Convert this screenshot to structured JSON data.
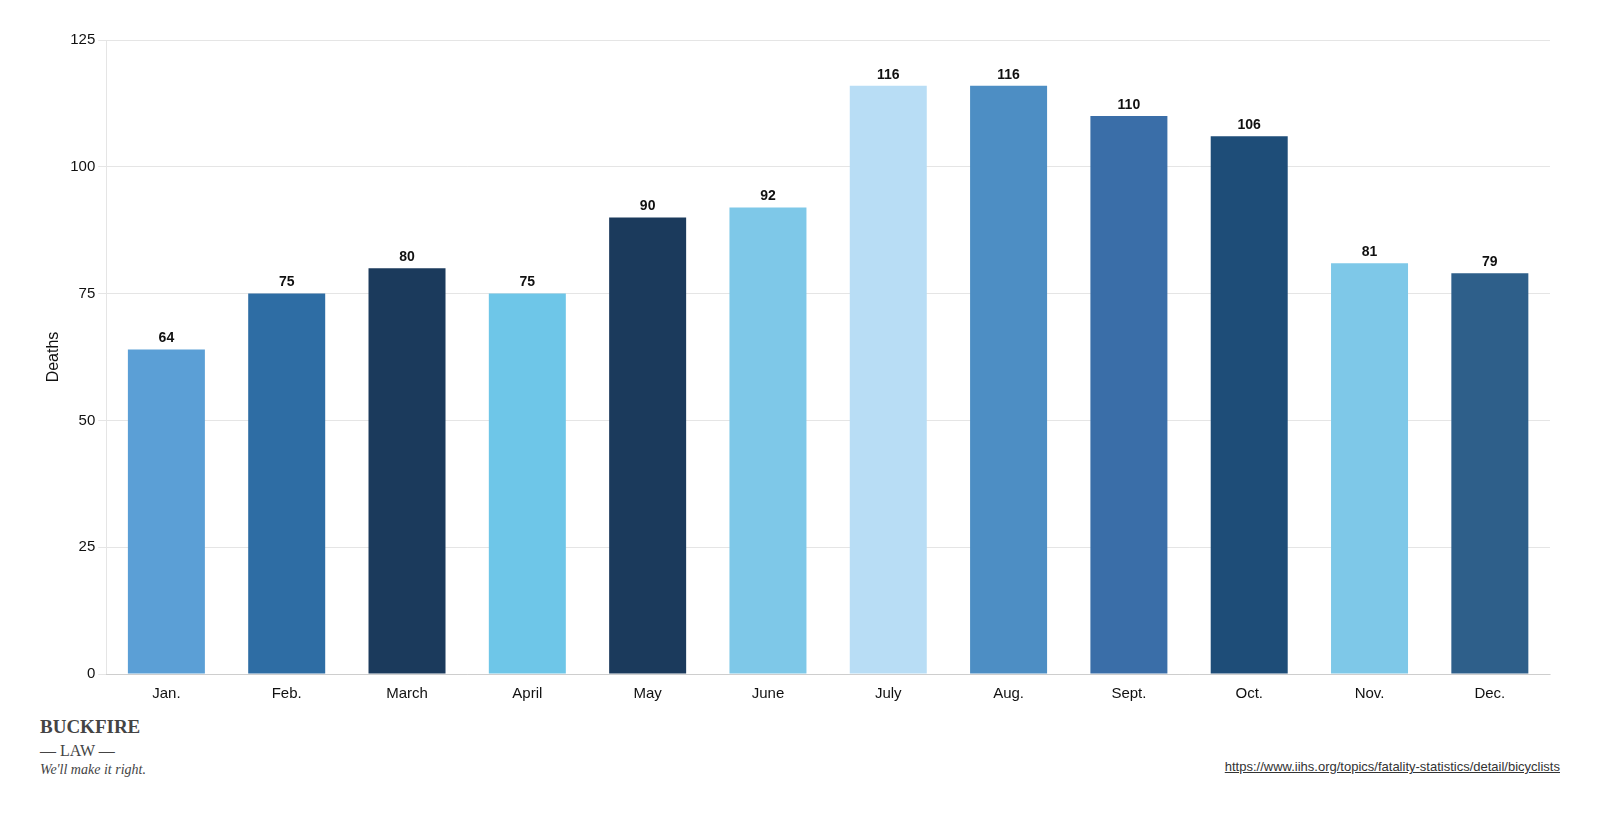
{
  "chart_data": {
    "type": "bar",
    "categories": [
      "Jan.",
      "Feb.",
      "March",
      "April",
      "May",
      "June",
      "July",
      "Aug.",
      "Sept.",
      "Oct.",
      "Nov.",
      "Dec."
    ],
    "values": [
      64,
      75,
      80,
      75,
      90,
      92,
      116,
      116,
      110,
      106,
      81,
      79
    ],
    "colors": [
      "#5b9fd6",
      "#2e6da4",
      "#1b3a5c",
      "#6ec6e8",
      "#1b3a5c",
      "#7ec8e8",
      "#b8ddf5",
      "#4d8ec4",
      "#3a6ea8",
      "#1e4d78",
      "#7ec8e8",
      "#2e5f8a"
    ],
    "ylabel": "Deaths",
    "ylim": [
      0,
      125
    ],
    "yticks": [
      0,
      25,
      50,
      75,
      100,
      125
    ],
    "grid": true,
    "data_labels": true,
    "annotations": [
      "BUCKFIRE",
      "— LAW —",
      "We'll make it right.",
      "https://www.iihs.org/topics/fatality-statistics/detail/bicyclists"
    ]
  }
}
